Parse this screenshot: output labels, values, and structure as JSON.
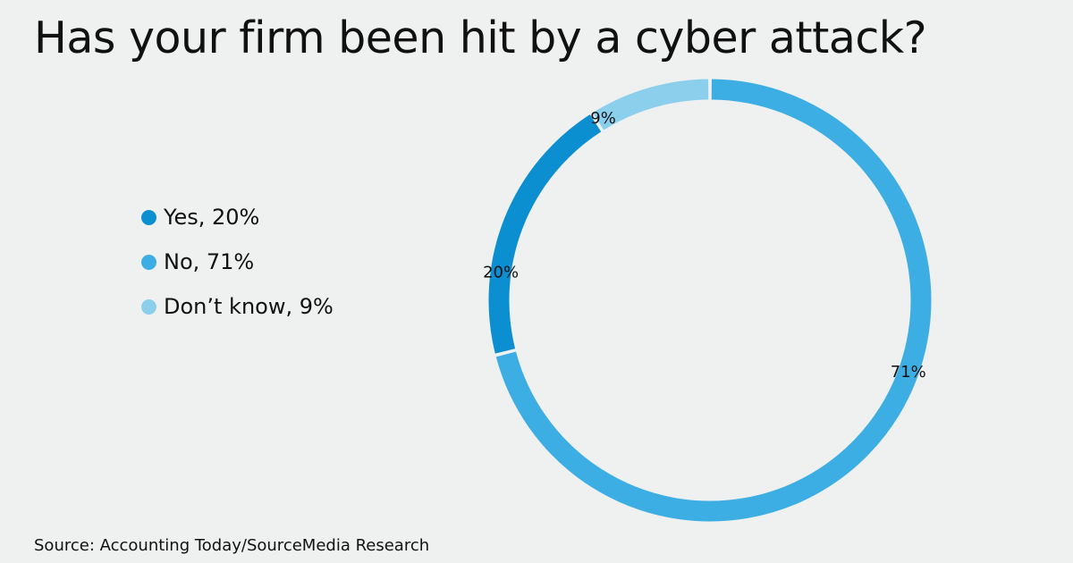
{
  "title": "Has your firm been hit by a cyber attack?",
  "source": "Source: Accounting Today/SourceMedia Research",
  "chart_data": {
    "type": "pie",
    "variant": "donut",
    "title": "Has your firm been hit by a cyber attack?",
    "series": [
      {
        "name": "Yes",
        "value": 20,
        "label": "20%",
        "legend": "Yes, 20%",
        "color": "#0b8fd1"
      },
      {
        "name": "No",
        "value": 71,
        "label": "71%",
        "legend": "No, 71%",
        "color": "#3daee3"
      },
      {
        "name": "Don’t know",
        "value": 9,
        "label": "9%",
        "legend": "Don’t know, 9%",
        "color": "#8ccfed"
      }
    ],
    "legend_position": "left"
  }
}
